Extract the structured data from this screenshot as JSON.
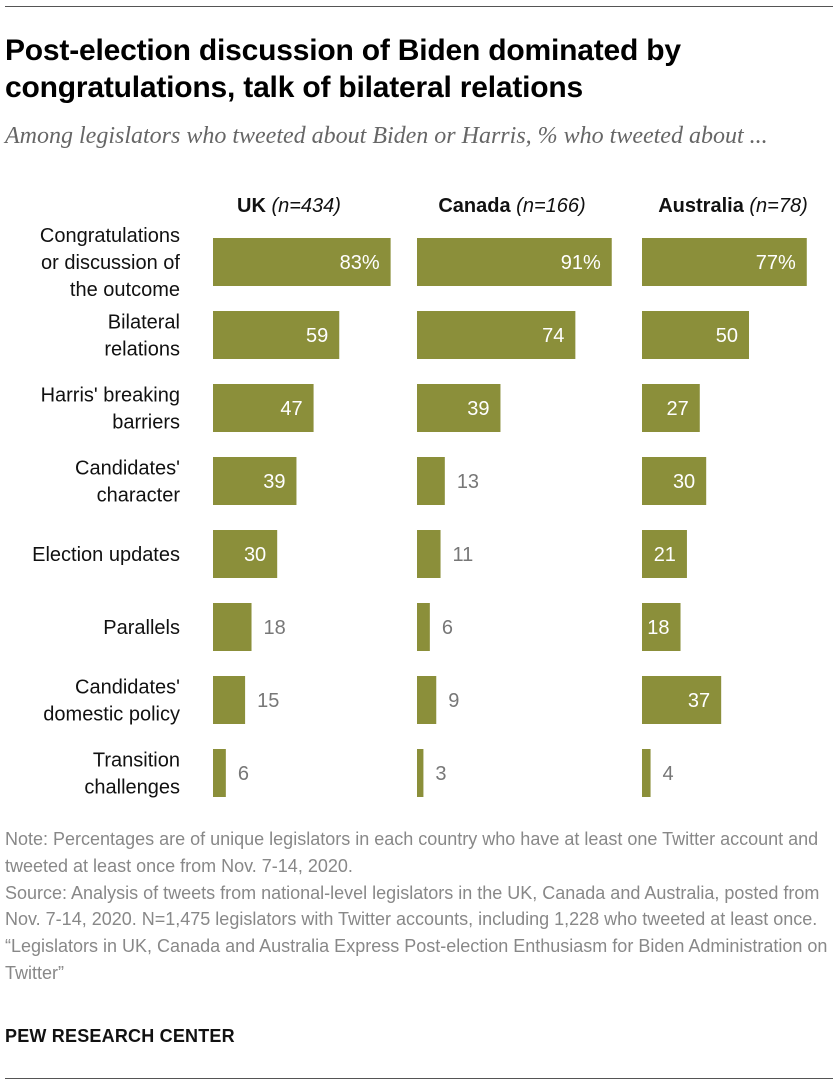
{
  "title": "Post-election discussion of Biden dominated by congratulations, talk of bilateral relations",
  "subtitle": "Among legislators who tweeted about Biden or Harris, % who tweeted about ...",
  "notes": {
    "note": "Note: Percentages are of unique legislators in each country who have at least one Twitter account and tweeted at least once from Nov. 7-14, 2020.",
    "source": "Source: Analysis of tweets from national-level legislators in the UK, Canada and Australia, posted from Nov. 7-14, 2020. N=1,475 legislators with Twitter accounts, including 1,228 who tweeted at least once.",
    "report": "“Legislators in UK, Canada and Australia Express Post-election Enthusiasm for Biden Administration on Twitter”"
  },
  "footer": {
    "org": "PEW RESEARCH CENTER"
  },
  "colors": {
    "bar": "#8b8f3a",
    "value_inside": "#ffffff",
    "value_outside": "#777777"
  },
  "chart_data": {
    "type": "bar",
    "orientation": "horizontal",
    "layout": "small-multiples",
    "categories": [
      [
        "Congratulations",
        "or discussion of",
        "the outcome"
      ],
      [
        "Bilateral",
        "relations"
      ],
      [
        "Harris' breaking",
        "barriers"
      ],
      [
        "Candidates'",
        "character"
      ],
      [
        "Election updates"
      ],
      [
        "Parallels"
      ],
      [
        "Candidates'",
        "domestic policy"
      ],
      [
        "Transition",
        "challenges"
      ]
    ],
    "series": [
      {
        "name": "UK",
        "n_label": "(n=434)",
        "values": [
          83,
          59,
          47,
          39,
          30,
          18,
          15,
          6
        ]
      },
      {
        "name": "Canada",
        "n_label": "(n=166)",
        "values": [
          91,
          74,
          39,
          13,
          11,
          6,
          9,
          3
        ]
      },
      {
        "name": "Australia",
        "n_label": "(n=78)",
        "values": [
          77,
          50,
          27,
          30,
          21,
          18,
          37,
          4
        ]
      }
    ],
    "value_suffix_first_row": "%",
    "xlim": [
      0,
      100
    ],
    "unit": "%"
  }
}
